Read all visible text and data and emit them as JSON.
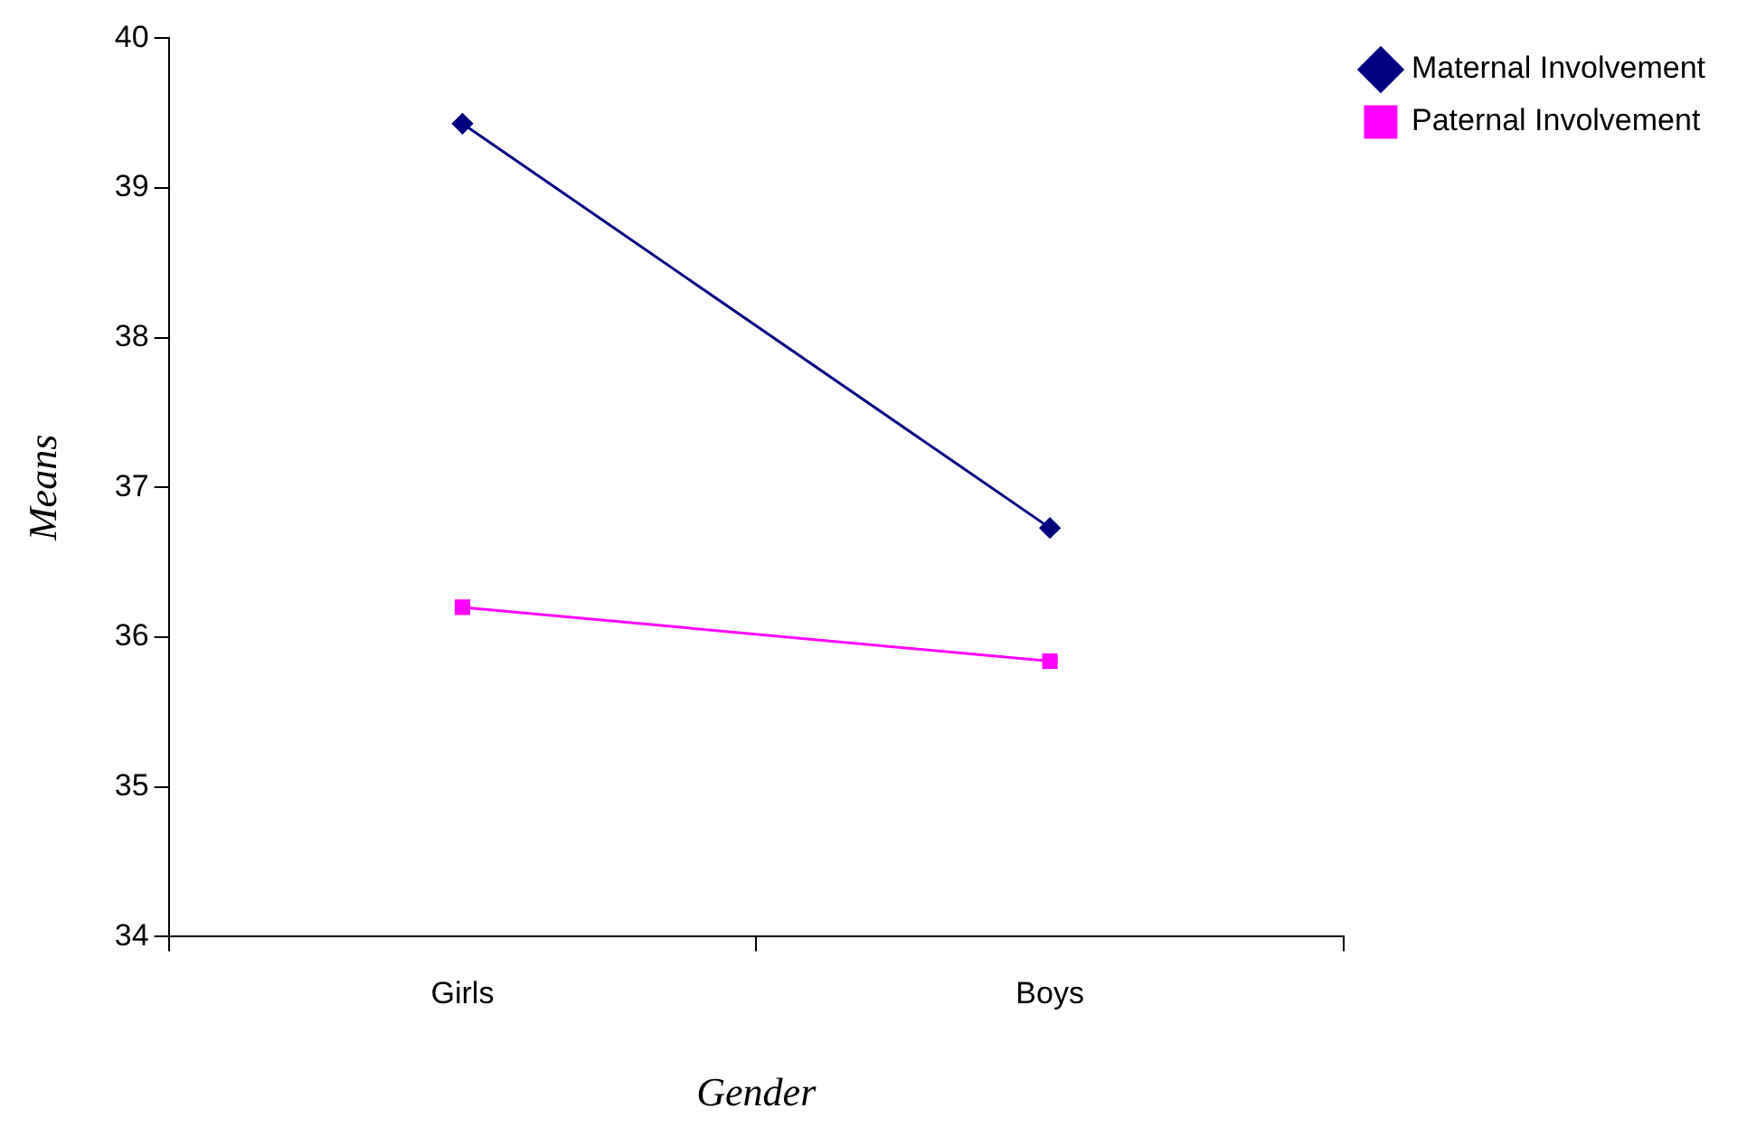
{
  "chart_data": {
    "type": "line",
    "xlabel": "Gender",
    "ylabel": "Means",
    "categories": [
      "Girls",
      "Boys"
    ],
    "series": [
      {
        "name": "Maternal Involvement",
        "color": "#000080",
        "values": [
          39.43,
          36.73
        ],
        "marker": "diamond"
      },
      {
        "name": "Paternal Involvement",
        "color": "#ff00ff",
        "values": [
          36.2,
          35.84
        ],
        "marker": "square"
      }
    ],
    "ylim": [
      34,
      40
    ],
    "yticks": [
      34,
      35,
      36,
      37,
      38,
      39,
      40
    ],
    "grid": false,
    "legend": "right",
    "line_style": "solid"
  }
}
